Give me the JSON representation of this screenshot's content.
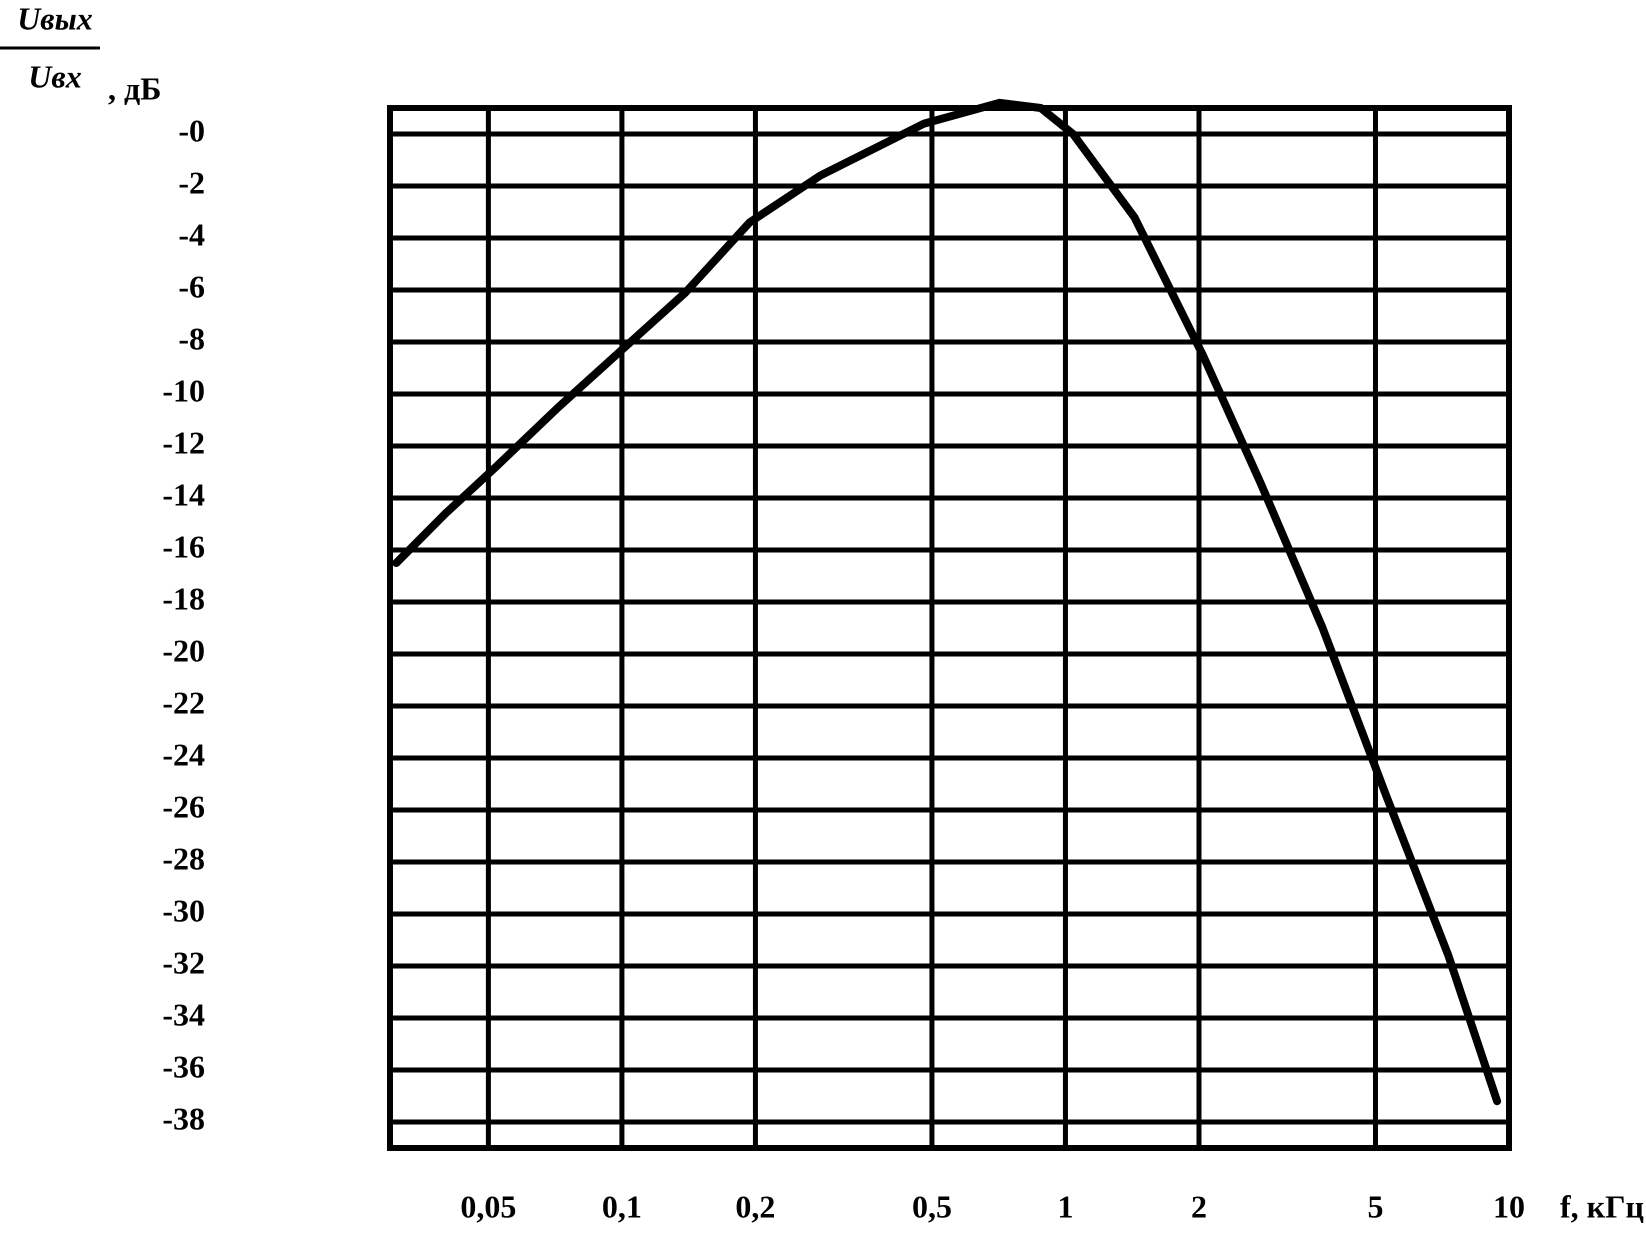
{
  "chart_data": {
    "type": "line",
    "y_label": {
      "numerator": "Uвых",
      "denominator": "Uвх",
      "unit": ", дБ"
    },
    "x_label": "f, кГц",
    "x": [
      0.031,
      0.04,
      0.052,
      0.072,
      0.1,
      0.139,
      0.194,
      0.28,
      0.48,
      0.71,
      0.88,
      1.04,
      1.43,
      2.04,
      2.75,
      3.8,
      5.3,
      7.3,
      9.4
    ],
    "values": [
      -16.5,
      -14.6,
      -12.8,
      -10.5,
      -8.3,
      -6.1,
      -3.4,
      -1.6,
      0.4,
      1.2,
      1.0,
      0,
      -3.2,
      -8.5,
      -13.4,
      -19.0,
      -25.5,
      -31.6,
      -37.2
    ],
    "color": "#000000",
    "xscale": "log",
    "xlim": [
      0.03,
      10
    ],
    "xticks": [
      {
        "value": 0.05,
        "label": "0,05"
      },
      {
        "value": 0.1,
        "label": "0,1"
      },
      {
        "value": 0.2,
        "label": "0,2"
      },
      {
        "value": 0.5,
        "label": "0,5"
      },
      1,
      2,
      5,
      10
    ],
    "ylim": [
      -39,
      1
    ],
    "yticks": [
      {
        "value": 0,
        "label": "-0"
      },
      -2,
      -4,
      -6,
      -8,
      -10,
      -12,
      -14,
      -16,
      -18,
      -20,
      -22,
      -24,
      -26,
      -28,
      -30,
      -32,
      -34,
      -36,
      -38
    ],
    "grid": true
  }
}
